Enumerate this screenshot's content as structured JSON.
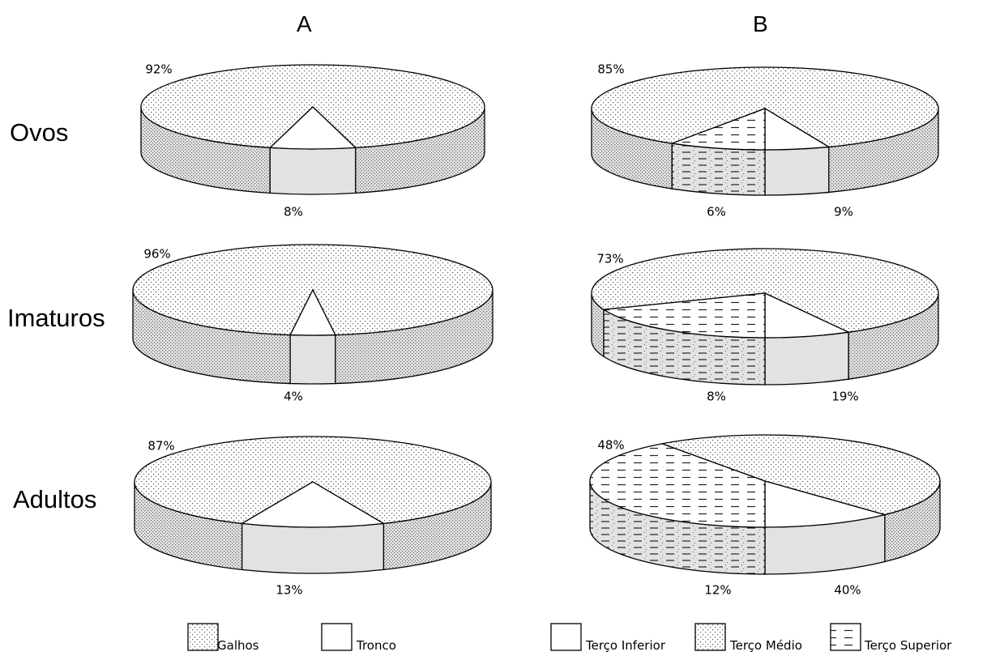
{
  "chart_data": [
    {
      "type": "pie",
      "panel": "A",
      "row": "Ovos",
      "slices": [
        {
          "label": "Galhos",
          "value": 92,
          "text": "92%"
        },
        {
          "label": "Tronco",
          "value": 8,
          "text": "8%"
        }
      ]
    },
    {
      "type": "pie",
      "panel": "A",
      "row": "Imaturos",
      "slices": [
        {
          "label": "Galhos",
          "value": 96,
          "text": "96%"
        },
        {
          "label": "Tronco",
          "value": 4,
          "text": "4%"
        }
      ]
    },
    {
      "type": "pie",
      "panel": "A",
      "row": "Adultos",
      "slices": [
        {
          "label": "Galhos",
          "value": 87,
          "text": "87%"
        },
        {
          "label": "Tronco",
          "value": 13,
          "text": "13%"
        }
      ]
    },
    {
      "type": "pie",
      "panel": "B",
      "row": "Ovos",
      "slices": [
        {
          "label": "Terço Médio",
          "value": 85,
          "text": "85%"
        },
        {
          "label": "Terço Inferior",
          "value": 6,
          "text": "6%"
        },
        {
          "label": "Terço Superior",
          "value": 9,
          "text": "9%"
        }
      ]
    },
    {
      "type": "pie",
      "panel": "B",
      "row": "Imaturos",
      "slices": [
        {
          "label": "Terço Médio",
          "value": 73,
          "text": "73%"
        },
        {
          "label": "Terço Inferior",
          "value": 8,
          "text": "8%"
        },
        {
          "label": "Terço Superior",
          "value": 19,
          "text": "19%"
        }
      ]
    },
    {
      "type": "pie",
      "panel": "B",
      "row": "Adultos",
      "slices": [
        {
          "label": "Terço Médio",
          "value": 48,
          "text": "48%"
        },
        {
          "label": "Terço Inferior",
          "value": 12,
          "text": "12%"
        },
        {
          "label": "Terço Superior",
          "value": 40,
          "text": "40%"
        }
      ]
    }
  ],
  "labels": {
    "col_a": "A",
    "col_b": "B",
    "row_ovos": "Ovos",
    "row_imaturos": "Imaturos",
    "row_adultos": "Adultos"
  },
  "legend_a": {
    "galhos": "Galhos",
    "tronco": "Tronco"
  },
  "legend_b": {
    "inferior": "Terço Inferior",
    "medio": "Terço Médio",
    "superior": "Terço Superior"
  },
  "colors": {
    "fill": "#e2e2e2",
    "stroke": "#000000",
    "pattern_dot": "#555555"
  }
}
